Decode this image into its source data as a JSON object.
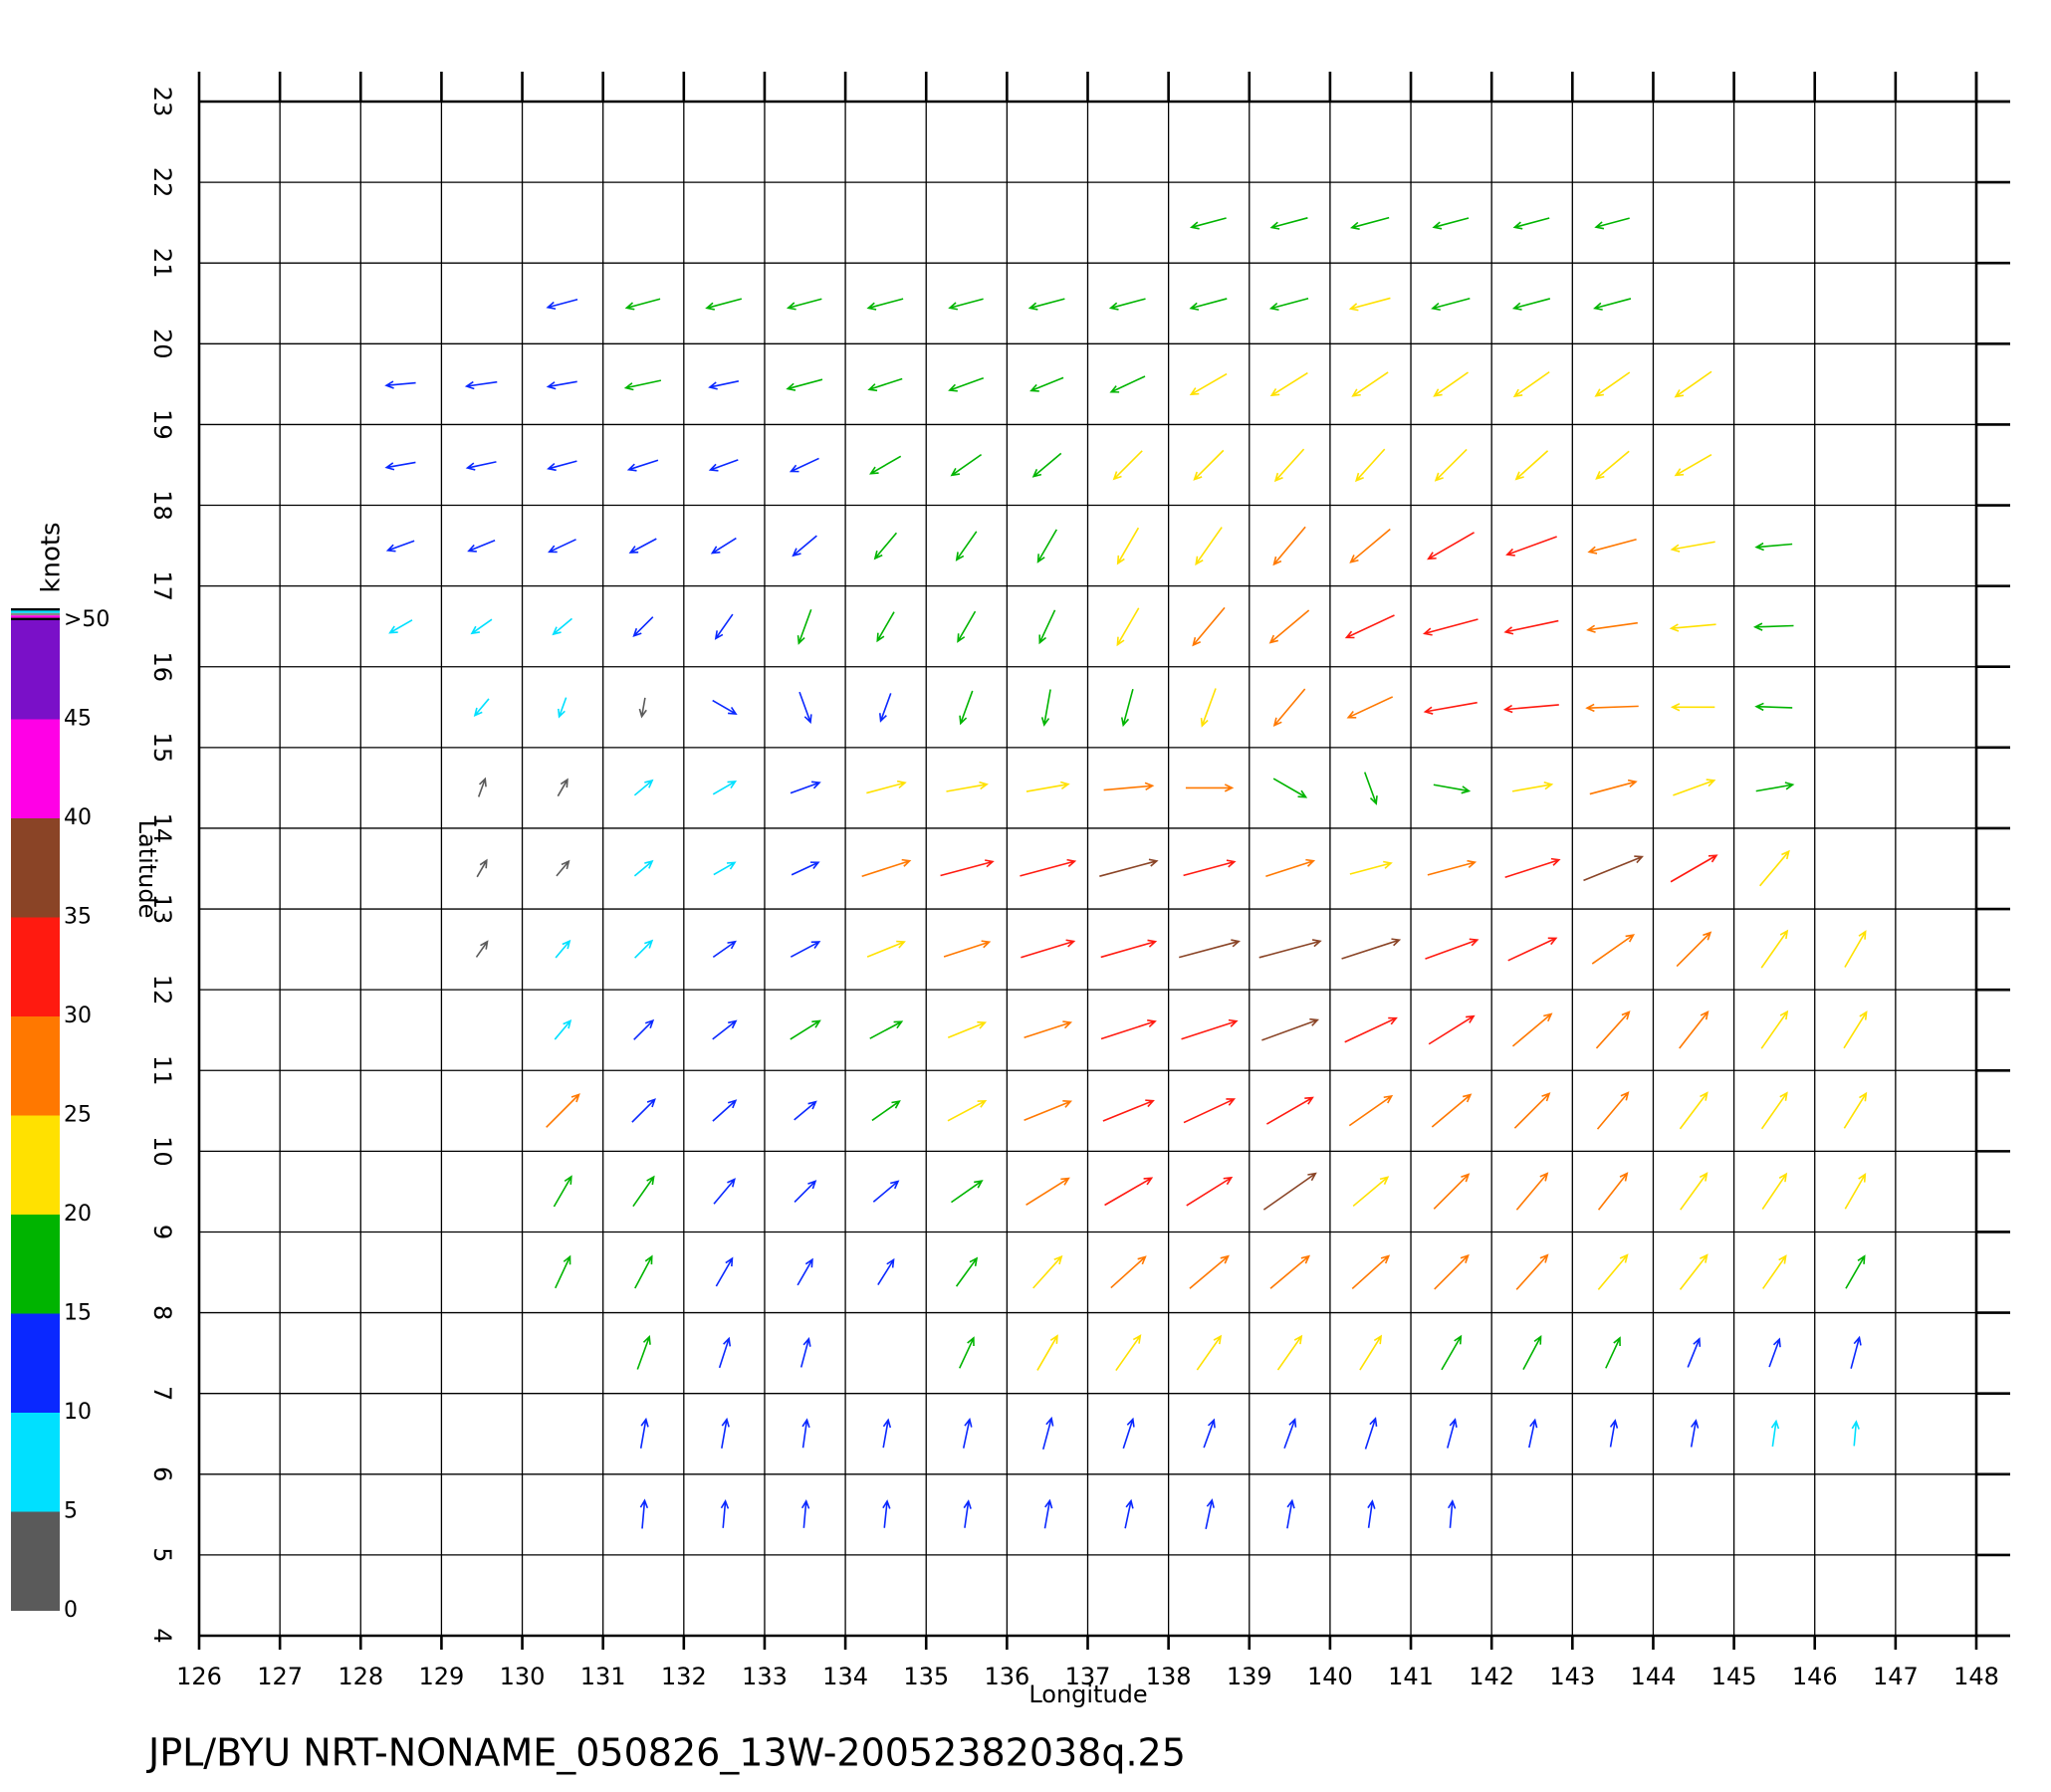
{
  "chart_data": {
    "type": "vector_field",
    "title": "JPL/BYU NRT-NONAME_050826_13W-20052382038q.25",
    "x_label": "Longitude",
    "y_label": "Latitude",
    "xlim": [
      126,
      148
    ],
    "ylim": [
      4,
      23
    ],
    "xticks": [
      126,
      127,
      128,
      129,
      130,
      131,
      132,
      133,
      134,
      135,
      136,
      137,
      138,
      139,
      140,
      141,
      142,
      143,
      144,
      145,
      146,
      147,
      148
    ],
    "yticks": [
      4,
      5,
      6,
      7,
      8,
      9,
      10,
      11,
      12,
      13,
      14,
      15,
      16,
      17,
      18,
      19,
      20,
      21,
      22,
      23
    ],
    "grid": true,
    "colorbar": {
      "title": "knots",
      "bounds": [
        0,
        5,
        10,
        15,
        20,
        25,
        30,
        35,
        40,
        45,
        50
      ],
      "colors": [
        "#5a5a5a",
        "#00e0ff",
        "#0a28ff",
        "#00b400",
        "#ffe100",
        "#ff7800",
        "#ff1a10",
        "#8a4426",
        "#ff00e6",
        "#7a10c8"
      ],
      "ticks": [
        0,
        5,
        10,
        15,
        20,
        25,
        30,
        35,
        40,
        45,
        {
          "value": 50,
          "label": ">50"
        }
      ]
    },
    "rows": [
      {
        "lat": 21.5,
        "lons": [
          138.5,
          139.5,
          140.5,
          141.5,
          142.5,
          143.5
        ],
        "speeds": [
          17,
          18,
          19,
          17,
          17,
          16
        ],
        "headings": [
          255,
          255,
          255,
          255,
          255,
          255
        ]
      },
      {
        "lat": 20.5,
        "lons": [
          130.5,
          131.5,
          132.5,
          133.5,
          134.5,
          135.5,
          136.5,
          137.5,
          138.5,
          139.5,
          140.5,
          141.5,
          142.5,
          143.5
        ],
        "speeds": [
          13,
          16,
          17,
          16,
          17,
          16,
          17,
          17,
          18,
          19,
          21,
          19,
          18,
          18
        ],
        "headings": [
          255,
          255,
          255,
          255,
          255,
          255,
          255,
          255,
          255,
          255,
          255,
          255,
          255,
          255
        ]
      },
      {
        "lat": 19.5,
        "lons": [
          128.5,
          129.5,
          130.5,
          131.5,
          132.5,
          133.5,
          134.5,
          135.5,
          136.5,
          137.5,
          138.5,
          139.5,
          140.5,
          141.5,
          142.5,
          143.5,
          144.5
        ],
        "speeds": [
          12,
          13,
          12,
          17,
          12,
          17,
          16,
          17,
          16,
          18,
          21,
          22,
          22,
          21,
          22,
          21,
          23
        ],
        "headings": [
          265,
          262,
          260,
          258,
          258,
          255,
          252,
          250,
          248,
          245,
          240,
          238,
          236,
          235,
          235,
          235,
          235
        ]
      },
      {
        "lat": 18.5,
        "lons": [
          128.5,
          129.5,
          130.5,
          131.5,
          132.5,
          133.5,
          134.5,
          135.5,
          136.5,
          137.5,
          138.5,
          139.5,
          140.5,
          141.5,
          142.5,
          143.5,
          144.5
        ],
        "speeds": [
          12,
          12,
          12,
          13,
          12,
          13,
          16,
          17,
          17,
          20,
          21,
          22,
          22,
          23,
          22,
          22,
          21
        ],
        "headings": [
          260,
          258,
          255,
          252,
          250,
          245,
          240,
          235,
          230,
          225,
          225,
          222,
          222,
          225,
          228,
          230,
          240
        ]
      },
      {
        "lat": 17.5,
        "lons": [
          128.5,
          129.5,
          130.5,
          131.5,
          132.5,
          133.5,
          134.5,
          135.5,
          136.5,
          137.5,
          138.5,
          139.5,
          140.5,
          141.5,
          142.5,
          143.5,
          144.5,
          145.5
        ],
        "speeds": [
          11,
          11,
          12,
          12,
          11,
          13,
          15,
          16,
          18,
          21,
          24,
          27,
          29,
          30,
          30,
          27,
          23,
          17
        ],
        "headings": [
          250,
          248,
          245,
          242,
          238,
          230,
          220,
          215,
          210,
          210,
          215,
          220,
          230,
          240,
          250,
          255,
          260,
          265
        ]
      },
      {
        "lat": 16.5,
        "lons": [
          128.5,
          129.5,
          130.5,
          131.5,
          132.5,
          133.5,
          134.5,
          135.5,
          136.5,
          137.5,
          138.5,
          139.5,
          140.5,
          141.5,
          142.5,
          143.5,
          144.5,
          145.5
        ],
        "speeds": [
          9,
          8,
          8,
          10,
          12,
          17,
          15,
          16,
          17,
          22,
          27,
          28,
          30,
          32,
          31,
          28,
          24,
          19
        ],
        "headings": [
          240,
          235,
          230,
          225,
          215,
          200,
          210,
          210,
          205,
          210,
          220,
          230,
          245,
          255,
          258,
          262,
          265,
          268
        ]
      },
      {
        "lat": 15.5,
        "lons": [
          129.5,
          130.5,
          131.5,
          132.5,
          133.5,
          134.5,
          135.5,
          136.5,
          137.5,
          138.5,
          139.5,
          140.5,
          141.5,
          142.5,
          143.5,
          144.5,
          145.5
        ],
        "speeds": [
          6,
          5,
          4,
          10,
          14,
          12,
          16,
          17,
          18,
          20,
          26,
          27,
          30,
          31,
          29,
          22,
          17
        ],
        "headings": [
          220,
          200,
          190,
          120,
          160,
          200,
          200,
          190,
          195,
          200,
          220,
          245,
          260,
          265,
          268,
          270,
          272
        ]
      },
      {
        "lat": 14.5,
        "lons": [
          129.5,
          130.5,
          131.5,
          132.5,
          133.5,
          134.5,
          135.5,
          136.5,
          137.5,
          138.5,
          139.5,
          140.5,
          141.5,
          142.5,
          143.5,
          144.5,
          145.5
        ],
        "speeds": [
          4,
          4,
          7,
          9,
          13,
          20,
          21,
          22,
          27,
          25,
          18,
          15,
          17,
          20,
          26,
          23,
          18
        ],
        "headings": [
          20,
          30,
          50,
          60,
          70,
          75,
          80,
          80,
          85,
          90,
          120,
          160,
          100,
          80,
          75,
          70,
          80
        ]
      },
      {
        "lat": 13.5,
        "lons": [
          129.5,
          130.5,
          131.5,
          132.5,
          133.5,
          134.5,
          135.5,
          136.5,
          137.5,
          138.5,
          139.5,
          140.5,
          141.5,
          142.5,
          143.5,
          144.5,
          145.5
        ],
        "speeds": [
          4,
          4,
          7,
          8,
          12,
          28,
          31,
          33,
          35,
          30,
          28,
          22,
          27,
          33,
          38,
          30,
          24
        ],
        "headings": [
          30,
          40,
          50,
          60,
          65,
          72,
          75,
          75,
          75,
          75,
          72,
          75,
          75,
          72,
          68,
          60,
          40
        ]
      },
      {
        "lat": 12.5,
        "lons": [
          129.5,
          130.5,
          131.5,
          132.5,
          133.5,
          134.5,
          135.5,
          136.5,
          137.5,
          138.5,
          139.5,
          140.5,
          141.5,
          142.5,
          143.5,
          144.5,
          145.5,
          146.5
        ],
        "speeds": [
          4,
          6,
          8,
          10,
          14,
          20,
          26,
          32,
          33,
          37,
          38,
          36,
          32,
          30,
          28,
          26,
          24,
          21
        ],
        "headings": [
          35,
          40,
          45,
          55,
          62,
          68,
          72,
          73,
          74,
          75,
          75,
          72,
          70,
          65,
          55,
          45,
          35,
          30
        ]
      },
      {
        "lat": 11.5,
        "lons": [
          130.5,
          131.5,
          132.5,
          133.5,
          134.5,
          135.5,
          136.5,
          137.5,
          138.5,
          139.5,
          140.5,
          141.5,
          142.5,
          143.5,
          144.5,
          145.5,
          146.5
        ],
        "speeds": [
          8,
          10,
          12,
          16,
          17,
          20,
          27,
          33,
          34,
          35,
          33,
          30,
          28,
          27,
          25,
          24,
          22
        ],
        "headings": [
          40,
          45,
          52,
          58,
          62,
          68,
          72,
          72,
          72,
          70,
          65,
          58,
          50,
          42,
          38,
          35,
          32
        ]
      },
      {
        "lat": 10.5,
        "lons": [
          130.5,
          131.5,
          132.5,
          133.5,
          134.5,
          135.5,
          136.5,
          137.5,
          138.5,
          139.5,
          140.5,
          141.5,
          142.5,
          143.5,
          144.5,
          145.5,
          146.5
        ],
        "speeds": [
          25,
          14,
          13,
          11,
          15,
          22,
          28,
          31,
          32,
          30,
          29,
          28,
          27,
          26,
          24,
          23,
          21
        ],
        "headings": [
          45,
          45,
          48,
          50,
          55,
          62,
          68,
          68,
          65,
          60,
          55,
          50,
          45,
          40,
          37,
          35,
          32
        ]
      },
      {
        "lat": 9.5,
        "lons": [
          130.5,
          131.5,
          132.5,
          133.5,
          134.5,
          135.5,
          136.5,
          137.5,
          138.5,
          139.5,
          140.5,
          141.5,
          142.5,
          143.5,
          144.5,
          145.5,
          146.5
        ],
        "speeds": [
          16,
          17,
          14,
          12,
          14,
          18,
          28,
          31,
          30,
          38,
          24,
          27,
          26,
          25,
          24,
          22,
          20
        ],
        "headings": [
          30,
          35,
          40,
          45,
          50,
          55,
          58,
          60,
          58,
          55,
          50,
          45,
          40,
          38,
          36,
          34,
          30
        ]
      },
      {
        "lat": 8.5,
        "lons": [
          130.5,
          131.5,
          132.5,
          133.5,
          134.5,
          135.5,
          136.5,
          137.5,
          138.5,
          139.5,
          140.5,
          141.5,
          142.5,
          143.5,
          144.5,
          145.5,
          146.5
        ],
        "speeds": [
          16,
          17,
          14,
          12,
          12,
          16,
          22,
          25,
          28,
          28,
          27,
          26,
          25,
          24,
          23,
          20,
          18
        ],
        "headings": [
          25,
          28,
          30,
          30,
          32,
          36,
          42,
          48,
          50,
          50,
          48,
          45,
          42,
          40,
          38,
          35,
          30
        ]
      },
      {
        "lat": 7.5,
        "lons": [
          131.5,
          132.5,
          133.5,
          135.5,
          136.5,
          137.5,
          138.5,
          139.5,
          140.5,
          141.5,
          142.5,
          143.5,
          144.5,
          145.5,
          146.5
        ],
        "speeds": [
          16,
          13,
          12,
          15,
          20,
          22,
          21,
          21,
          20,
          19,
          18,
          15,
          13,
          12,
          14
        ],
        "headings": [
          20,
          18,
          15,
          25,
          30,
          35,
          35,
          35,
          32,
          30,
          28,
          25,
          22,
          20,
          15
        ]
      },
      {
        "lat": 6.5,
        "lons": [
          131.5,
          132.5,
          133.5,
          134.5,
          135.5,
          136.5,
          137.5,
          138.5,
          139.5,
          140.5,
          141.5,
          142.5,
          143.5,
          144.5,
          145.5,
          146.5
        ],
        "speeds": [
          12,
          12,
          11,
          11,
          12,
          14,
          13,
          12,
          13,
          14,
          12,
          11,
          10,
          10,
          9,
          8
        ],
        "headings": [
          10,
          10,
          8,
          10,
          12,
          15,
          18,
          20,
          20,
          18,
          15,
          12,
          10,
          10,
          8,
          5
        ]
      },
      {
        "lat": 5.5,
        "lons": [
          131.5,
          132.5,
          133.5,
          134.5,
          135.5,
          136.5,
          137.5,
          138.5,
          139.5,
          140.5,
          141.5
        ],
        "speeds": [
          11,
          10,
          10,
          10,
          10,
          11,
          11,
          12,
          11,
          10,
          10
        ],
        "headings": [
          5,
          5,
          5,
          6,
          8,
          10,
          12,
          12,
          10,
          8,
          5
        ]
      }
    ]
  }
}
